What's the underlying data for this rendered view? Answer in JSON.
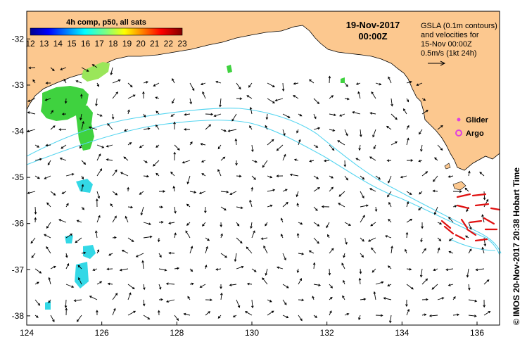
{
  "map": {
    "lon_ticks": [
      "124",
      "126",
      "128",
      "130",
      "132",
      "134",
      "136"
    ],
    "lat_ticks": [
      "-32",
      "-33",
      "-34",
      "-35",
      "-36",
      "-37",
      "-38"
    ],
    "lon_range": [
      124,
      136.6
    ],
    "lat_range": [
      -38.2,
      -31.4
    ],
    "land_color": "#fcc88f",
    "sst_colors": {
      "low": "#1a1aa8",
      "green": "#3fd23f",
      "lightgreen": "#9ae65a",
      "cyan": "#33d8e6"
    },
    "contour_color": "#55d5f0",
    "vector_color": "#000000",
    "glider_color": "#e040e0",
    "argo_color": "#e040e0",
    "red_vector_color": "#e01010"
  },
  "colorbar": {
    "title": "4h comp, p50, all sats",
    "labels": [
      "12",
      "13",
      "14",
      "15",
      "16",
      "17",
      "18",
      "19",
      "20",
      "21",
      "22",
      "23"
    ]
  },
  "header": {
    "date": "19-Nov-2017",
    "time": "00:00Z"
  },
  "legend": {
    "line1": "GSLA (0.1m contours)",
    "line2": "and velocities for",
    "line3": "15-Nov 00:00Z",
    "line4": "0.5m/s (1kt 24h)",
    "glider": "Glider",
    "argo": "Argo"
  },
  "credit": "© IMOS 20-Nov-2017 20:38 Hobart Time"
}
